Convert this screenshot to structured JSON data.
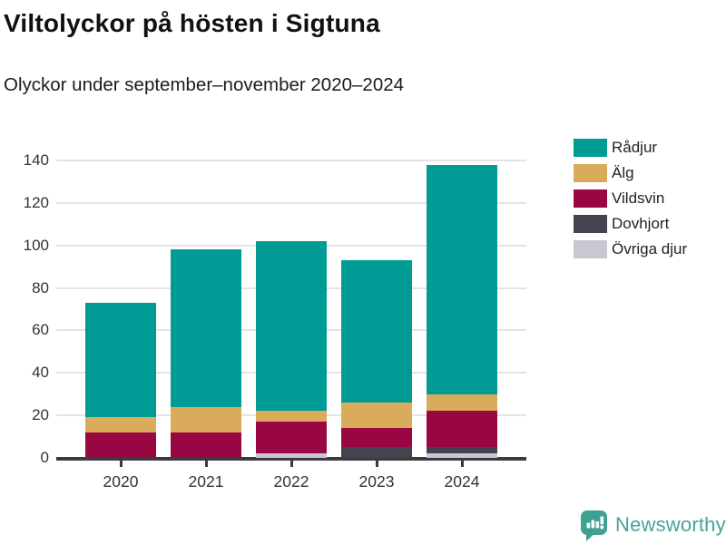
{
  "header": {
    "title": "Viltolyckor på hösten i Sigtuna",
    "subtitle": "Olyckor under september–november 2020–2024"
  },
  "chart_data": {
    "type": "bar",
    "stacked": true,
    "title": "Viltolyckor på hösten i Sigtuna",
    "subtitle": "Olyckor under september–november 2020–2024",
    "categories": [
      "2020",
      "2021",
      "2022",
      "2023",
      "2024"
    ],
    "series": [
      {
        "name": "Rådjur",
        "color": "#009b94",
        "values": [
          54,
          74,
          80,
          67,
          108
        ]
      },
      {
        "name": "Älg",
        "color": "#dbab5c",
        "values": [
          7,
          12,
          5,
          12,
          8
        ]
      },
      {
        "name": "Vildsvin",
        "color": "#990742",
        "values": [
          12,
          12,
          15,
          9,
          17
        ]
      },
      {
        "name": "Dovhjort",
        "color": "#45434f",
        "values": [
          0,
          0,
          0,
          5,
          3
        ]
      },
      {
        "name": "Övriga djur",
        "color": "#c8c8d2",
        "values": [
          0,
          0,
          2,
          0,
          2
        ]
      }
    ],
    "totals": [
      73,
      98,
      102,
      93,
      138
    ],
    "xlabel": "",
    "ylabel": "",
    "ylim": [
      0,
      140
    ],
    "yticks": [
      0,
      20,
      40,
      60,
      80,
      100,
      120,
      140
    ],
    "grid": true,
    "legend_position": "right"
  },
  "colors": {
    "axis": "#3a3a40",
    "grid": "#e4e4e6",
    "tick_text": "#333333",
    "title_text": "#111111",
    "brand": "#46a399"
  },
  "footer": {
    "brand": "Newsworthy"
  }
}
